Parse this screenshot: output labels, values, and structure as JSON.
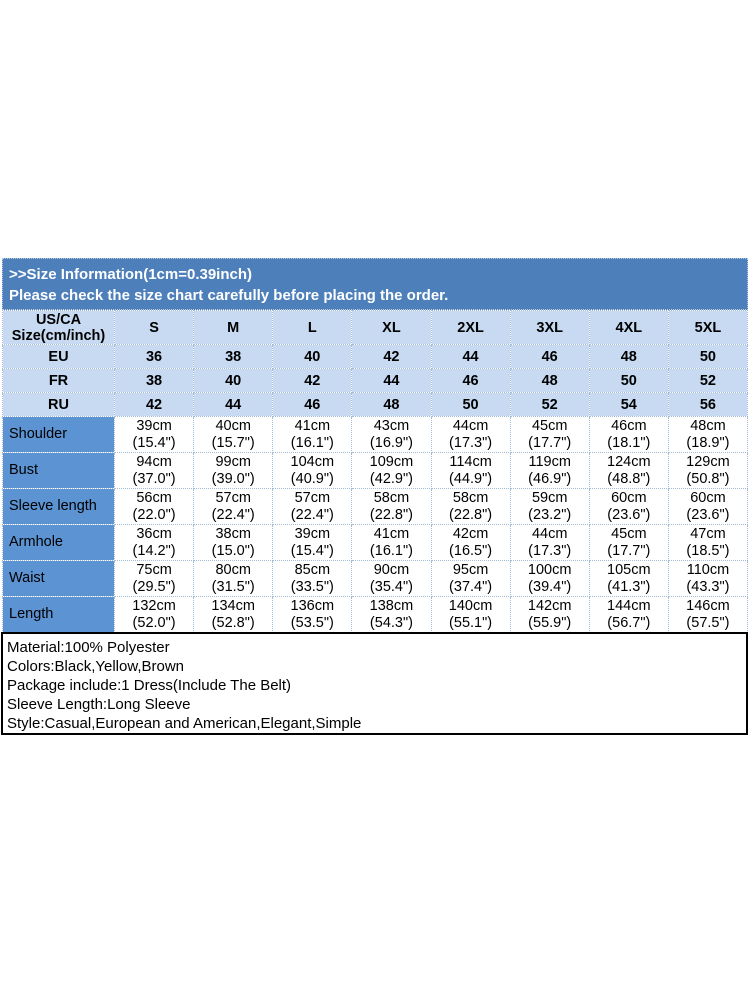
{
  "colors": {
    "title_band_bg": "#4d7fba",
    "header_row_bg": "#c7daf1",
    "measure_label_bg": "#5b93d3",
    "grid_border": "#a3bcda",
    "details_border": "#000000"
  },
  "title_band": {
    "line1": ">>Size Information(1cm=0.39inch)",
    "line2": "Please check the size chart carefully before placing the order."
  },
  "size_table": {
    "corner_line1": "US/CA",
    "corner_line2": "Size(cm/inch)",
    "size_headers": [
      "S",
      "M",
      "L",
      "XL",
      "2XL",
      "3XL",
      "4XL",
      "5XL"
    ],
    "region_rows": [
      {
        "label": "EU",
        "values": [
          "36",
          "38",
          "40",
          "42",
          "44",
          "46",
          "48",
          "50"
        ]
      },
      {
        "label": "FR",
        "values": [
          "38",
          "40",
          "42",
          "44",
          "46",
          "48",
          "50",
          "52"
        ]
      },
      {
        "label": "RU",
        "values": [
          "42",
          "44",
          "46",
          "48",
          "50",
          "52",
          "54",
          "56"
        ]
      }
    ],
    "measure_rows": [
      {
        "label": "Shoulder",
        "cm": [
          "39cm",
          "40cm",
          "41cm",
          "43cm",
          "44cm",
          "45cm",
          "46cm",
          "48cm"
        ],
        "inch": [
          "(15.4\")",
          "(15.7\")",
          "(16.1\")",
          "(16.9\")",
          "(17.3\")",
          "(17.7\")",
          "(18.1\")",
          "(18.9\")"
        ]
      },
      {
        "label": "Bust",
        "cm": [
          "94cm",
          "99cm",
          "104cm",
          "109cm",
          "114cm",
          "119cm",
          "124cm",
          "129cm"
        ],
        "inch": [
          "(37.0\")",
          "(39.0\")",
          "(40.9\")",
          "(42.9\")",
          "(44.9\")",
          "(46.9\")",
          "(48.8\")",
          "(50.8\")"
        ]
      },
      {
        "label": "Sleeve length",
        "cm": [
          "56cm",
          "57cm",
          "57cm",
          "58cm",
          "58cm",
          "59cm",
          "60cm",
          "60cm"
        ],
        "inch": [
          "(22.0\")",
          "(22.4\")",
          "(22.4\")",
          "(22.8\")",
          "(22.8\")",
          "(23.2\")",
          "(23.6\")",
          "(23.6\")"
        ]
      },
      {
        "label": "Armhole",
        "cm": [
          "36cm",
          "38cm",
          "39cm",
          "41cm",
          "42cm",
          "44cm",
          "45cm",
          "47cm"
        ],
        "inch": [
          "(14.2\")",
          "(15.0\")",
          "(15.4\")",
          "(16.1\")",
          "(16.5\")",
          "(17.3\")",
          "(17.7\")",
          "(18.5\")"
        ]
      },
      {
        "label": "Waist",
        "cm": [
          "75cm",
          "80cm",
          "85cm",
          "90cm",
          "95cm",
          "100cm",
          "105cm",
          "110cm"
        ],
        "inch": [
          "(29.5\")",
          "(31.5\")",
          "(33.5\")",
          "(35.4\")",
          "(37.4\")",
          "(39.4\")",
          "(41.3\")",
          "(43.3\")"
        ]
      },
      {
        "label": "Length",
        "cm": [
          "132cm",
          "134cm",
          "136cm",
          "138cm",
          "140cm",
          "142cm",
          "144cm",
          "146cm"
        ],
        "inch": [
          "(52.0\")",
          "(52.8\")",
          "(53.5\")",
          "(54.3\")",
          "(55.1\")",
          "(55.9\")",
          "(56.7\")",
          "(57.5\")"
        ]
      }
    ]
  },
  "details": {
    "lines": [
      "Material:100% Polyester",
      "Colors:Black,Yellow,Brown",
      "Package include:1 Dress(Include The Belt)",
      "Sleeve Length:Long Sleeve",
      "Style:Casual,European and American,Elegant,Simple"
    ]
  }
}
